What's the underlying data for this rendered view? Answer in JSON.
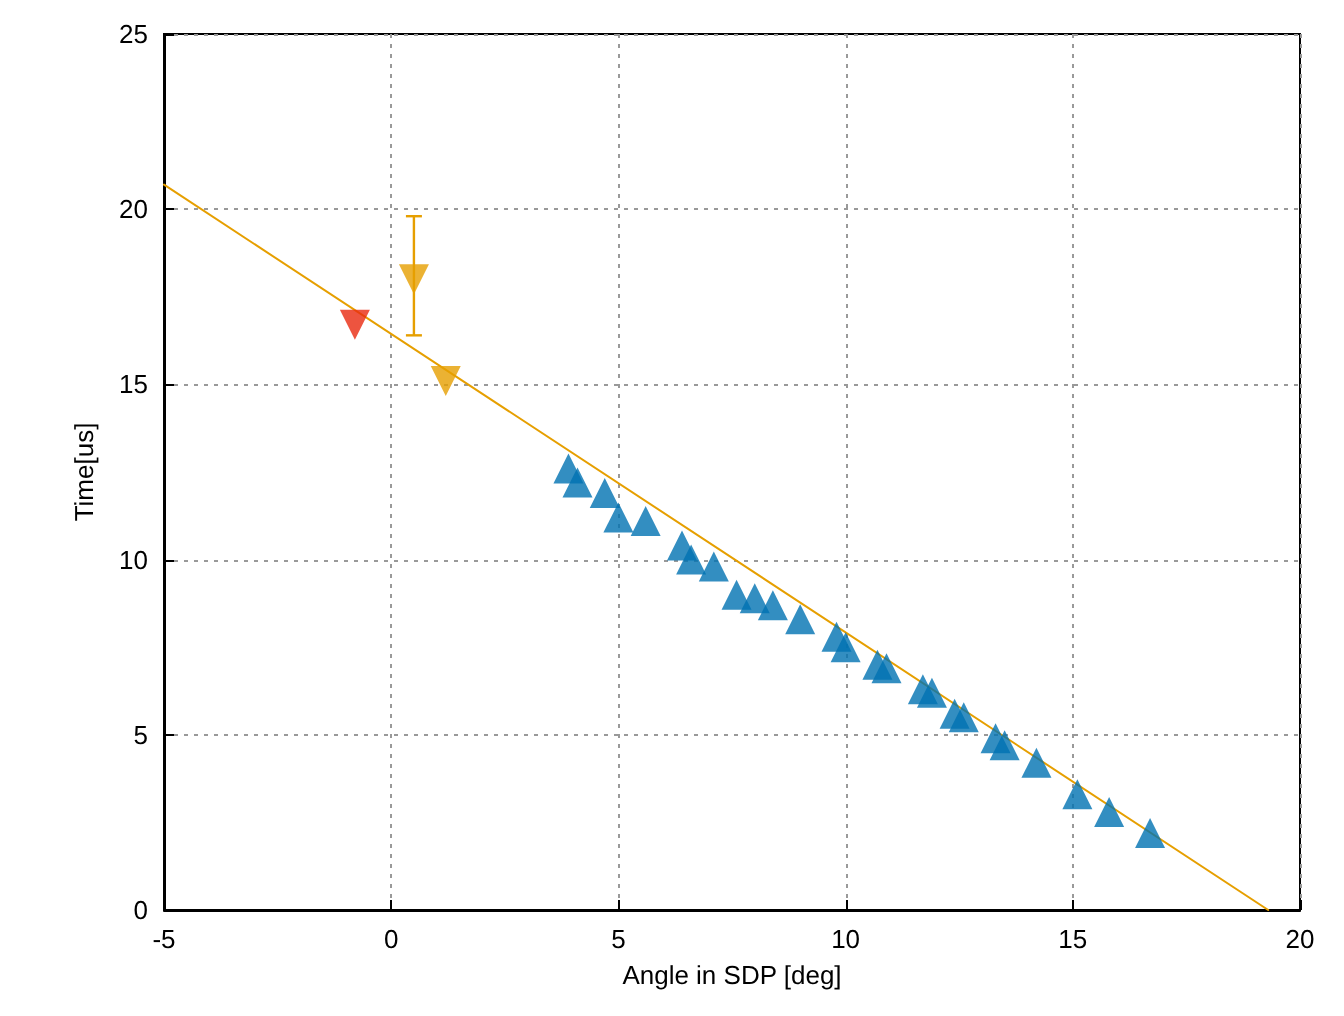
{
  "chart_data": {
    "type": "scatter",
    "xlabel": "Angle in SDP [deg]",
    "ylabel": "Time[us]",
    "xlim": [
      -5,
      20
    ],
    "ylim": [
      0,
      25
    ],
    "xticks": [
      -5,
      0,
      5,
      10,
      15,
      20
    ],
    "yticks": [
      0,
      5,
      10,
      15,
      20,
      25
    ],
    "grid": true,
    "series": [
      {
        "type": "line",
        "color": "#e69f00",
        "marker": "none",
        "x": [
          -5,
          19.3
        ],
        "values": [
          20.7,
          0
        ]
      },
      {
        "color": "#0072b2",
        "marker": "triangle",
        "x": [
          3.9,
          4.1,
          4.7,
          5.0,
          5.6,
          6.4,
          6.6,
          7.1,
          7.6,
          8.0,
          8.4,
          9.0,
          9.8,
          10.0,
          10.7,
          10.9,
          11.7,
          11.9,
          12.4,
          12.6,
          13.3,
          13.5,
          14.2,
          15.1,
          15.8,
          16.7
        ],
        "values": [
          12.6,
          12.2,
          11.9,
          11.2,
          11.1,
          10.4,
          10.0,
          9.8,
          9.0,
          8.9,
          8.7,
          8.3,
          7.8,
          7.5,
          7.0,
          6.9,
          6.3,
          6.2,
          5.6,
          5.5,
          4.9,
          4.7,
          4.2,
          3.3,
          2.8,
          2.2
        ]
      },
      {
        "color": "#e69f00",
        "marker": "triangle-down",
        "x": [
          0.5,
          1.2
        ],
        "values": [
          18.0,
          15.1
        ],
        "errors": [
          [
            16.4,
            19.8
          ],
          null
        ]
      },
      {
        "color": "#e8290f",
        "marker": "triangle-down",
        "x": [
          -0.8
        ],
        "values": [
          16.7
        ]
      }
    ]
  }
}
